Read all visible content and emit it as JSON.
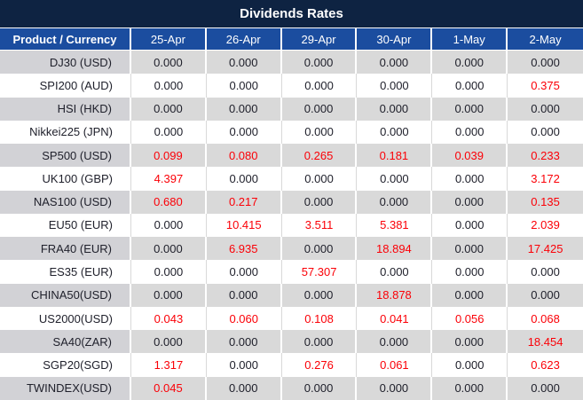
{
  "title": "Dividends Rates",
  "colors": {
    "title_bg": "#0e2342",
    "header_bg": "#1b4d9f",
    "header_text": "#ffffff",
    "row_gray_bg": "#d9d9d9",
    "row_gray_product_bg": "#d2d2d6",
    "row_white_bg": "#ffffff",
    "value_text": "#20212c",
    "value_highlight_text": "#fb0007"
  },
  "table": {
    "product_header": "Product / Currency",
    "date_headers": [
      "25-Apr",
      "26-Apr",
      "29-Apr",
      "30-Apr",
      "1-May",
      "2-May"
    ],
    "rows": [
      {
        "product": "DJ30 (USD)",
        "values": [
          "0.000",
          "0.000",
          "0.000",
          "0.000",
          "0.000",
          "0.000"
        ],
        "red": [
          false,
          false,
          false,
          false,
          false,
          false
        ]
      },
      {
        "product": "SPI200 (AUD)",
        "values": [
          "0.000",
          "0.000",
          "0.000",
          "0.000",
          "0.000",
          "0.375"
        ],
        "red": [
          false,
          false,
          false,
          false,
          false,
          true
        ]
      },
      {
        "product": "HSI (HKD)",
        "values": [
          "0.000",
          "0.000",
          "0.000",
          "0.000",
          "0.000",
          "0.000"
        ],
        "red": [
          false,
          false,
          false,
          false,
          false,
          false
        ]
      },
      {
        "product": "Nikkei225 (JPN)",
        "values": [
          "0.000",
          "0.000",
          "0.000",
          "0.000",
          "0.000",
          "0.000"
        ],
        "red": [
          false,
          false,
          false,
          false,
          false,
          false
        ]
      },
      {
        "product": "SP500 (USD)",
        "values": [
          "0.099",
          "0.080",
          "0.265",
          "0.181",
          "0.039",
          "0.233"
        ],
        "red": [
          true,
          true,
          true,
          true,
          true,
          true
        ]
      },
      {
        "product": "UK100 (GBP)",
        "values": [
          "4.397",
          "0.000",
          "0.000",
          "0.000",
          "0.000",
          "3.172"
        ],
        "red": [
          true,
          false,
          false,
          false,
          false,
          true
        ]
      },
      {
        "product": "NAS100 (USD)",
        "values": [
          "0.680",
          "0.217",
          "0.000",
          "0.000",
          "0.000",
          "0.135"
        ],
        "red": [
          true,
          true,
          false,
          false,
          false,
          true
        ]
      },
      {
        "product": "EU50 (EUR)",
        "values": [
          "0.000",
          "10.415",
          "3.511",
          "5.381",
          "0.000",
          "2.039"
        ],
        "red": [
          false,
          true,
          true,
          true,
          false,
          true
        ]
      },
      {
        "product": "FRA40 (EUR)",
        "values": [
          "0.000",
          "6.935",
          "0.000",
          "18.894",
          "0.000",
          "17.425"
        ],
        "red": [
          false,
          true,
          false,
          true,
          false,
          true
        ]
      },
      {
        "product": "ES35 (EUR)",
        "values": [
          "0.000",
          "0.000",
          "57.307",
          "0.000",
          "0.000",
          "0.000"
        ],
        "red": [
          false,
          false,
          true,
          false,
          false,
          false
        ]
      },
      {
        "product": "CHINA50(USD)",
        "values": [
          "0.000",
          "0.000",
          "0.000",
          "18.878",
          "0.000",
          "0.000"
        ],
        "red": [
          false,
          false,
          false,
          true,
          false,
          false
        ]
      },
      {
        "product": "US2000(USD)",
        "values": [
          "0.043",
          "0.060",
          "0.108",
          "0.041",
          "0.056",
          "0.068"
        ],
        "red": [
          true,
          true,
          true,
          true,
          true,
          true
        ]
      },
      {
        "product": "SA40(ZAR)",
        "values": [
          "0.000",
          "0.000",
          "0.000",
          "0.000",
          "0.000",
          "18.454"
        ],
        "red": [
          false,
          false,
          false,
          false,
          false,
          true
        ]
      },
      {
        "product": "SGP20(SGD)",
        "values": [
          "1.317",
          "0.000",
          "0.276",
          "0.061",
          "0.000",
          "0.623"
        ],
        "red": [
          true,
          false,
          true,
          true,
          false,
          true
        ]
      },
      {
        "product": "TWINDEX(USD)",
        "values": [
          "0.045",
          "0.000",
          "0.000",
          "0.000",
          "0.000",
          "0.000"
        ],
        "red": [
          true,
          false,
          false,
          false,
          false,
          false
        ]
      }
    ]
  }
}
